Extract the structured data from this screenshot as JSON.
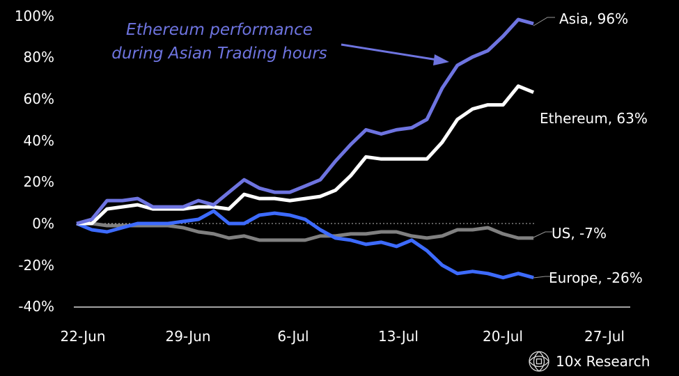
{
  "chart_data": {
    "type": "line",
    "title": "",
    "annotation": "Ethereum performance during Asian Trading hours",
    "annotation_lines": [
      "Ethereum performance",
      "during Asian Trading hours"
    ],
    "xlabel": "",
    "ylabel": "",
    "ylim": [
      -40,
      100
    ],
    "yticks": [
      "100%",
      "80%",
      "60%",
      "40%",
      "20%",
      "0%",
      "-20%",
      "-40%"
    ],
    "xticks": [
      "22-Jun",
      "29-Jun",
      "6-Jul",
      "13-Jul",
      "20-Jul",
      "27-Jul"
    ],
    "grid": false,
    "zero_line": "dotted",
    "legend": "inline end labels",
    "x_start_note": "daily points, ~21-Jun to ~21-Jul",
    "series": [
      {
        "name": "Asia",
        "end_label": "Asia, 96%",
        "color": "#6e74e0",
        "values": [
          0,
          2,
          11,
          11,
          12,
          8,
          8,
          8,
          11,
          9,
          15,
          21,
          17,
          15,
          15,
          18,
          21,
          30,
          38,
          45,
          43,
          45,
          46,
          50,
          65,
          76,
          80,
          83,
          90,
          98,
          96
        ]
      },
      {
        "name": "Ethereum",
        "end_label": "Ethereum, 63%",
        "color": "#ffffff",
        "values": [
          0,
          0,
          7,
          8,
          9,
          7,
          7,
          7,
          8,
          8,
          7,
          14,
          12,
          12,
          11,
          12,
          13,
          16,
          23,
          32,
          31,
          31,
          31,
          31,
          39,
          50,
          55,
          57,
          57,
          66,
          63
        ]
      },
      {
        "name": "Europe",
        "end_label": "Europe, -26%",
        "color": "#3d6bff",
        "values": [
          0,
          -3,
          -4,
          -2,
          0,
          0,
          0,
          1,
          2,
          6,
          0,
          0,
          4,
          5,
          4,
          2,
          -3,
          -7,
          -8,
          -10,
          -9,
          -11,
          -8,
          -13,
          -20,
          -24,
          -23,
          -24,
          -26,
          -24,
          -26
        ]
      },
      {
        "name": "US",
        "end_label": "US, -7%",
        "color": "#808080",
        "values": [
          0,
          0,
          -1,
          -1,
          -1,
          -1,
          -1,
          -2,
          -4,
          -5,
          -7,
          -6,
          -8,
          -8,
          -8,
          -8,
          -6,
          -6,
          -5,
          -5,
          -4,
          -4,
          -6,
          -7,
          -6,
          -3,
          -3,
          -2,
          -5,
          -7,
          -7
        ]
      }
    ]
  },
  "brand": {
    "name": "10x Research"
  }
}
